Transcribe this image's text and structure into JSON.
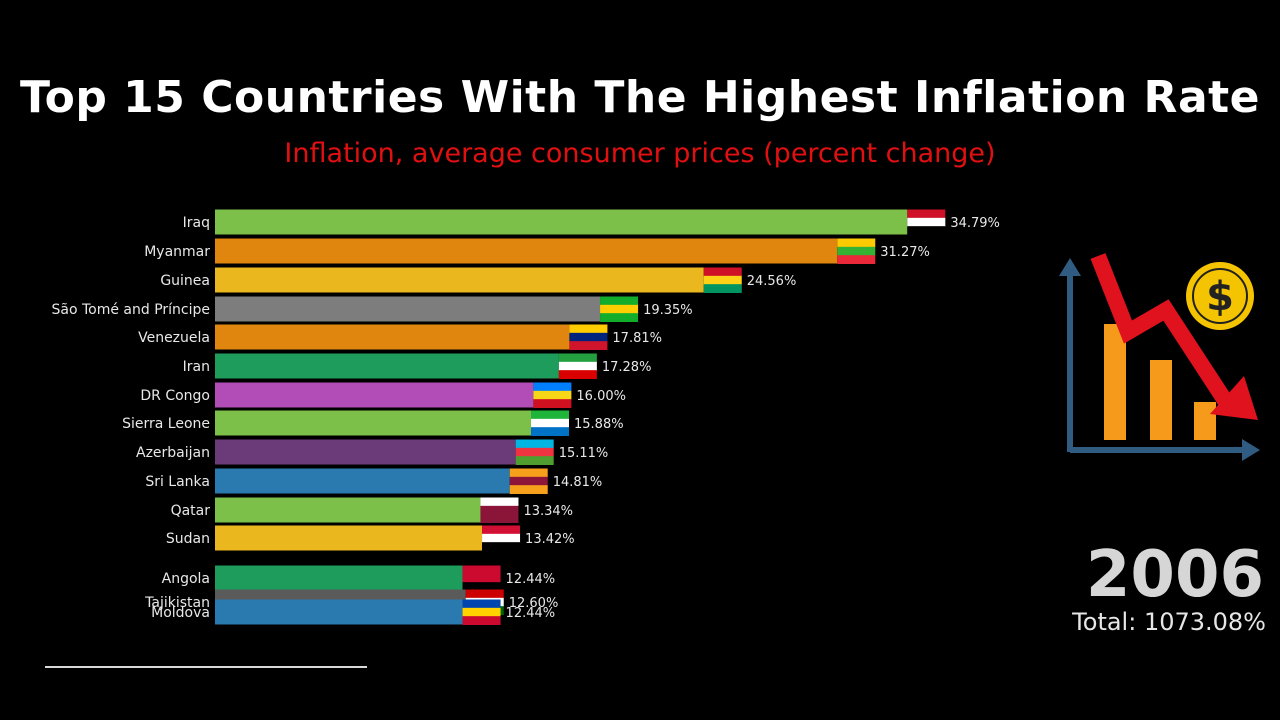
{
  "header": {
    "title": "Top 15 Countries With The Highest Inflation Rate",
    "subtitle": "Inflation, average consumer prices (percent change)"
  },
  "footer": {
    "year": "2006",
    "total": "Total: 1073.08%"
  },
  "colors": {
    "title": "#ffffff",
    "subtitle": "#e01010",
    "background": "#000000"
  },
  "icon": "finance-chart-dollar-decline-icon",
  "chart_data": {
    "type": "bar",
    "orientation": "horizontal",
    "title": "Top 15 Countries With The Highest Inflation Rate",
    "subtitle": "Inflation, average consumer prices (percent change)",
    "xlabel": "",
    "ylabel": "",
    "unit": "%",
    "grid": false,
    "categories": [
      "Iraq",
      "Myanmar",
      "Guinea",
      "São Tomé and Príncipe",
      "Venezuela",
      "Iran",
      "DR Congo",
      "Sierra Leone",
      "Azerbaijan",
      "Sri Lanka",
      "Qatar",
      "Sudan",
      "Angola",
      "Tajikistan",
      "Moldova"
    ],
    "values": [
      34.79,
      31.27,
      24.56,
      19.35,
      17.81,
      17.28,
      16.0,
      15.88,
      15.11,
      14.81,
      13.34,
      13.42,
      12.44,
      12.6,
      12.44
    ],
    "value_labels": [
      "34.79%",
      "31.27%",
      "24.56%",
      "19.35%",
      "17.81%",
      "17.28%",
      "16.00%",
      "15.88%",
      "15.11%",
      "14.81%",
      "13.34%",
      "13.42%",
      "12.44%",
      "12.60%",
      "12.44%"
    ],
    "bar_colors": [
      "#7cc04a",
      "#e0860e",
      "#eab81e",
      "#7d7d7d",
      "#e0860e",
      "#1e9c5c",
      "#b24db8",
      "#7cc04a",
      "#6b3a78",
      "#2a7ab0",
      "#7cc04a",
      "#eab81e",
      "#1e9c5c",
      "#5a5a5a",
      "#2a7ab0"
    ],
    "flag_colors": [
      [
        "#ce1126",
        "#ffffff",
        "#000000"
      ],
      [
        "#fecb00",
        "#34b233",
        "#ea2839"
      ],
      [
        "#ce1126",
        "#fcd116",
        "#009460"
      ],
      [
        "#12ad2b",
        "#ffce00",
        "#12ad2b"
      ],
      [
        "#ffcc00",
        "#00247d",
        "#cf142b"
      ],
      [
        "#239f40",
        "#ffffff",
        "#da0000"
      ],
      [
        "#007fff",
        "#f7d618",
        "#ce1021"
      ],
      [
        "#1eb53a",
        "#ffffff",
        "#0072c6"
      ],
      [
        "#00b5e2",
        "#ef3340",
        "#509e2f"
      ],
      [
        "#f7a01c",
        "#8d153a",
        "#f7a01c"
      ],
      [
        "#ffffff",
        "#8a1538",
        "#8a1538"
      ],
      [
        "#d21034",
        "#ffffff",
        "#000000"
      ],
      [
        "#cc092f",
        "#cc092f",
        "#000000"
      ],
      [
        "#cc0000",
        "#ffffff",
        "#006600"
      ],
      [
        "#0046ae",
        "#ffd200",
        "#cc092f"
      ]
    ]
  }
}
